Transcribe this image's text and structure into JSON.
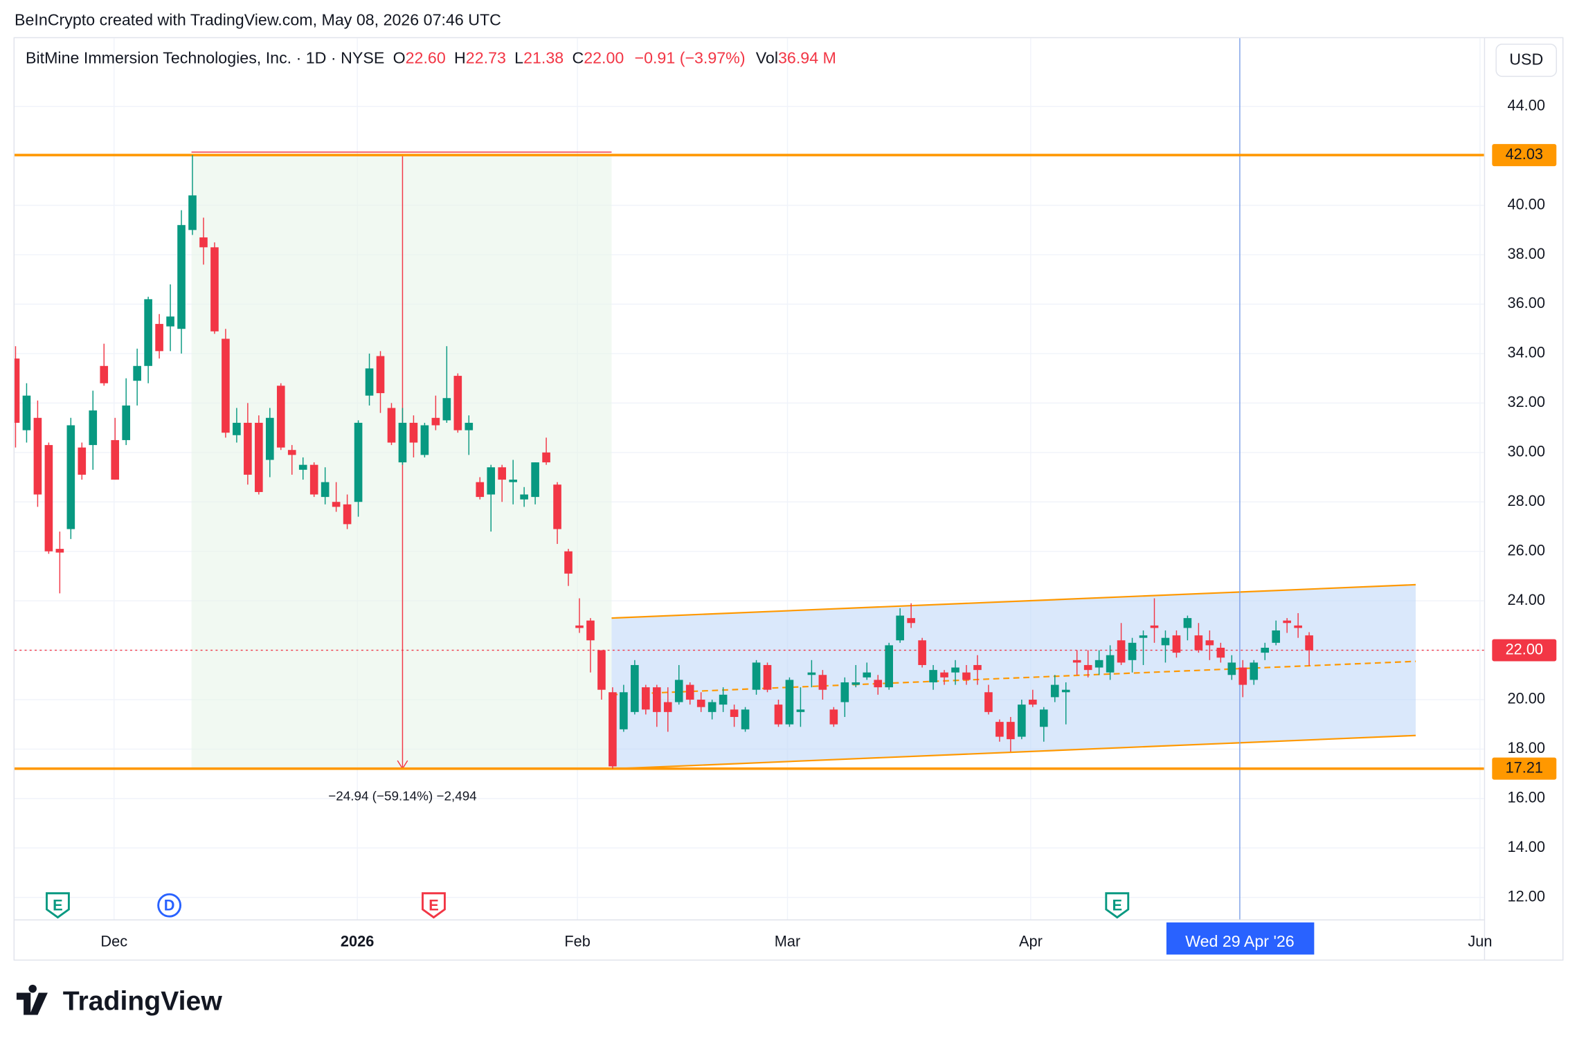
{
  "caption": "BeInCrypto created with TradingView.com, May 08, 2026 07:46 UTC",
  "header": {
    "symbol": "BitMine Immersion Technologies, Inc. · 1D · NYSE",
    "open_label": "O",
    "open": "22.60",
    "high_label": "H",
    "high": "22.73",
    "low_label": "L",
    "low": "21.38",
    "close_label": "C",
    "close": "22.00",
    "change": "−0.91 (−3.97%)",
    "volume_label": "Vol",
    "volume": "36.94 M"
  },
  "currency": "USD",
  "crosshair_label": "Wed 29 Apr '26",
  "measure_label": "−24.94 (−59.14%) −2,494",
  "events": [
    "E",
    "D",
    "E",
    "E"
  ],
  "brand": "TradingView",
  "chart_data": {
    "type": "candlestick",
    "up_color": "#089981",
    "down_color": "#f23645",
    "x_labels": [
      "Dec",
      "2026",
      "Feb",
      "Mar",
      "Apr",
      "Jun"
    ],
    "ylim": [
      11.11,
      46.76
    ],
    "yticks": [
      {
        "value": 12,
        "label": "12.00"
      },
      {
        "value": 14,
        "label": "14.00"
      },
      {
        "value": 16,
        "label": "16.00"
      },
      {
        "value": 18,
        "label": "18.00"
      },
      {
        "value": 20,
        "label": "20.00"
      },
      {
        "value": 22,
        "label": "22.00"
      },
      {
        "value": 24,
        "label": "24.00"
      },
      {
        "value": 26,
        "label": "26.00"
      },
      {
        "value": 28,
        "label": "28.00"
      },
      {
        "value": 30,
        "label": "30.00"
      },
      {
        "value": 32,
        "label": "32.00"
      },
      {
        "value": 34,
        "label": "34.00"
      },
      {
        "value": 36,
        "label": "36.00"
      },
      {
        "value": 38,
        "label": "38.00"
      },
      {
        "value": 40,
        "label": "40.00"
      },
      {
        "value": 42,
        "label": "42.00"
      },
      {
        "value": 44,
        "label": "44.00"
      }
    ],
    "grid": true,
    "price_lines": [
      {
        "value": 42.03,
        "label": "42.03",
        "color": "#ff9800"
      },
      {
        "value": 17.21,
        "label": "17.21",
        "color": "#ff9800"
      },
      {
        "value": 22.0,
        "label": "22.00",
        "color": "#f23645"
      }
    ],
    "channel": {
      "upper": [
        23.3,
        24.65
      ],
      "middle": [
        20.2,
        21.55
      ],
      "lower": [
        17.2,
        18.55
      ],
      "color": "#ff9800"
    },
    "open": [
      33.8,
      30.9,
      31.4,
      30.3,
      26.1,
      26.9,
      30.2,
      30.3,
      33.5,
      30.5,
      30.5,
      32.9,
      33.5,
      35.2,
      35.1,
      35.0,
      39.0,
      38.7,
      38.3,
      34.6,
      30.7,
      31.2,
      31.2,
      29.7,
      32.7,
      30.1,
      29.3,
      29.5,
      28.2,
      28.0,
      27.9,
      28.0,
      32.3,
      33.9,
      31.8,
      29.6,
      31.2,
      29.9,
      31.4,
      31.3,
      33.1,
      30.9,
      28.8,
      28.3,
      29.4,
      28.8,
      28.1,
      28.2,
      30.0,
      28.7,
      26.0,
      23.0,
      23.2,
      22.0,
      20.3,
      18.8,
      19.5,
      20.5,
      20.5,
      19.9,
      19.9,
      20.6,
      20.0,
      19.5,
      19.8,
      19.6,
      18.8,
      20.4,
      21.4,
      19.8,
      19.0,
      19.5,
      21.0,
      21.0,
      19.6,
      19.9,
      20.6,
      20.9,
      20.8,
      20.5,
      22.4,
      23.3,
      22.4,
      20.7,
      21.1,
      21.1,
      21.1,
      21.4,
      20.3,
      19.1,
      19.1,
      18.5,
      20.0,
      18.9,
      20.1,
      20.3,
      21.6,
      21.4,
      21.3,
      21.1,
      22.4,
      21.6,
      22.5,
      23.0,
      22.2,
      22.6,
      22.9,
      22.6,
      22.4,
      22.1,
      21.0,
      21.3,
      20.8,
      21.9,
      22.3,
      23.2,
      23.0,
      22.6
    ],
    "high": [
      34.3,
      32.8,
      32.1,
      30.4,
      26.8,
      31.4,
      30.4,
      32.5,
      34.4,
      31.4,
      33.0,
      34.2,
      36.3,
      35.6,
      36.8,
      39.8,
      42.03,
      39.5,
      38.5,
      35.0,
      31.8,
      32.0,
      31.5,
      31.8,
      32.8,
      30.3,
      29.8,
      29.6,
      29.4,
      28.8,
      28.3,
      31.3,
      34.0,
      34.1,
      32.0,
      31.8,
      31.5,
      31.2,
      32.3,
      34.3,
      33.2,
      31.5,
      29.0,
      29.5,
      29.5,
      29.7,
      28.6,
      29.6,
      30.6,
      28.8,
      26.1,
      24.1,
      23.3,
      22.0,
      20.5,
      20.6,
      21.6,
      20.6,
      20.6,
      20.5,
      21.4,
      20.7,
      20.3,
      20.0,
      20.5,
      19.8,
      19.7,
      21.6,
      21.5,
      20.0,
      20.9,
      20.5,
      21.6,
      21.2,
      19.7,
      20.9,
      21.4,
      21.5,
      21.0,
      22.3,
      23.7,
      23.9,
      22.5,
      21.4,
      21.2,
      21.6,
      21.4,
      21.8,
      20.6,
      19.2,
      19.3,
      20.0,
      20.4,
      19.7,
      21.0,
      20.7,
      22.0,
      22.0,
      22.0,
      22.2,
      23.1,
      22.5,
      22.8,
      24.1,
      22.8,
      22.8,
      23.4,
      23.1,
      22.8,
      22.3,
      21.8,
      21.6,
      21.6,
      22.3,
      23.2,
      23.3,
      23.5,
      22.73
    ],
    "low": [
      30.2,
      30.4,
      27.8,
      25.9,
      24.3,
      26.5,
      28.9,
      29.3,
      32.7,
      28.9,
      30.3,
      31.9,
      32.8,
      33.8,
      34.1,
      34.0,
      38.8,
      37.6,
      34.8,
      30.6,
      30.4,
      28.7,
      28.3,
      29.0,
      30.1,
      29.1,
      28.9,
      28.2,
      27.9,
      27.6,
      26.9,
      27.4,
      31.9,
      31.6,
      30.3,
      29.5,
      29.8,
      29.8,
      30.9,
      31.2,
      30.8,
      29.9,
      28.1,
      26.8,
      28.0,
      27.9,
      27.8,
      27.9,
      29.5,
      26.3,
      24.6,
      22.7,
      21.1,
      20.0,
      17.21,
      18.7,
      19.4,
      19.4,
      18.9,
      18.7,
      19.8,
      19.8,
      19.5,
      19.2,
      19.5,
      18.9,
      18.7,
      20.2,
      20.3,
      18.9,
      18.9,
      18.9,
      20.5,
      20.0,
      18.9,
      19.3,
      20.5,
      20.8,
      20.2,
      20.4,
      22.3,
      22.9,
      21.3,
      20.4,
      20.6,
      20.6,
      20.6,
      20.6,
      19.4,
      18.3,
      17.9,
      18.4,
      19.7,
      18.3,
      19.9,
      19.0,
      21.0,
      20.9,
      21.0,
      20.8,
      21.4,
      21.1,
      21.4,
      22.3,
      21.5,
      21.7,
      22.4,
      21.9,
      21.6,
      21.5,
      20.8,
      20.1,
      20.6,
      21.6,
      22.2,
      22.7,
      22.5,
      21.38
    ],
    "close": [
      31.2,
      32.3,
      28.3,
      26.0,
      25.95,
      31.1,
      29.1,
      31.7,
      32.8,
      28.9,
      31.9,
      33.5,
      36.2,
      34.1,
      35.5,
      39.2,
      40.4,
      38.3,
      34.9,
      30.8,
      31.2,
      29.1,
      28.4,
      31.4,
      30.2,
      29.9,
      29.5,
      28.3,
      28.8,
      27.8,
      27.1,
      31.2,
      33.4,
      32.4,
      30.4,
      31.2,
      30.4,
      31.1,
      31.1,
      32.2,
      30.9,
      31.2,
      28.2,
      29.4,
      28.9,
      28.9,
      28.3,
      29.6,
      29.6,
      26.9,
      25.1,
      22.9,
      22.4,
      20.4,
      17.3,
      20.3,
      21.4,
      19.6,
      19.5,
      19.5,
      20.8,
      20.0,
      19.7,
      19.9,
      20.2,
      19.3,
      19.6,
      21.5,
      20.4,
      19.0,
      20.8,
      19.6,
      21.1,
      20.4,
      19.0,
      20.7,
      20.7,
      21.1,
      20.5,
      22.2,
      23.4,
      23.1,
      21.4,
      21.2,
      20.9,
      21.3,
      20.8,
      21.2,
      19.5,
      18.5,
      18.4,
      19.8,
      19.8,
      19.6,
      20.6,
      20.4,
      21.5,
      21.2,
      21.6,
      21.8,
      21.5,
      22.3,
      22.6,
      22.9,
      22.5,
      21.9,
      23.3,
      22.0,
      22.2,
      21.7,
      21.5,
      20.6,
      21.5,
      22.1,
      22.8,
      23.1,
      22.9,
      22.0
    ]
  }
}
